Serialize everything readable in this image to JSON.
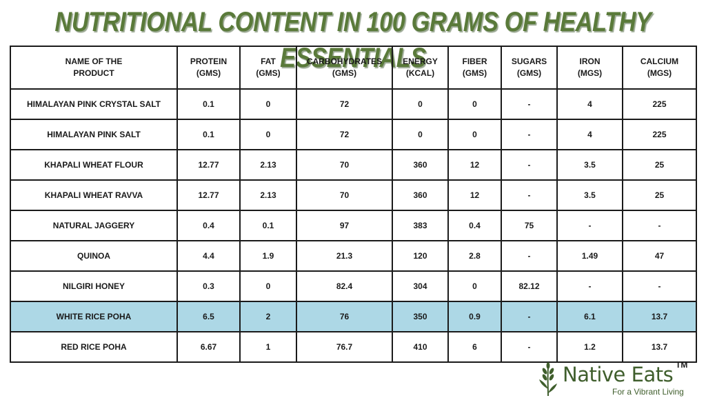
{
  "title": "NUTRITIONAL CONTENT IN 100 GRAMS OF HEALTHY ESSENTIALS",
  "table": {
    "headers": [
      [
        "NAME OF THE",
        "PRODUCT"
      ],
      [
        "PROTEIN",
        "(GMS)"
      ],
      [
        "FAT",
        "(GMS)"
      ],
      [
        "CARBOHYDRATES",
        "(GMS)"
      ],
      [
        "ENERGY",
        "(KCAL)"
      ],
      [
        "FIBER",
        "(GMS)"
      ],
      [
        "SUGARS",
        "(GMS)"
      ],
      [
        "IRON",
        "(MGS)"
      ],
      [
        "CALCIUM",
        "(MGS)"
      ]
    ],
    "rows": [
      [
        "HIMALAYAN PINK CRYSTAL SALT",
        "0.1",
        "0",
        "72",
        "0",
        "0",
        "-",
        "4",
        "225"
      ],
      [
        "HIMALAYAN PINK SALT",
        "0.1",
        "0",
        "72",
        "0",
        "0",
        "-",
        "4",
        "225"
      ],
      [
        "KHAPALI WHEAT FLOUR",
        "12.77",
        "2.13",
        "70",
        "360",
        "12",
        "-",
        "3.5",
        "25"
      ],
      [
        "KHAPALI WHEAT RAVVA",
        "12.77",
        "2.13",
        "70",
        "360",
        "12",
        "-",
        "3.5",
        "25"
      ],
      [
        "NATURAL JAGGERY",
        "0.4",
        "0.1",
        "97",
        "383",
        "0.4",
        "75",
        "-",
        "-"
      ],
      [
        "QUINOA",
        "4.4",
        "1.9",
        "21.3",
        "120",
        "2.8",
        "-",
        "1.49",
        "47"
      ],
      [
        "NILGIRI HONEY",
        "0.3",
        "0",
        "82.4",
        "304",
        "0",
        "82.12",
        "-",
        "-"
      ],
      [
        "WHITE RICE POHA",
        "6.5",
        "2",
        "76",
        "350",
        "0.9",
        "-",
        "6.1",
        "13.7"
      ],
      [
        "RED RICE POHA",
        "6.67",
        "1",
        "76.7",
        "410",
        "6",
        "-",
        "1.2",
        "13.7"
      ]
    ],
    "highlight_row": "WHITE RICE POHA"
  },
  "logo": {
    "name": "Native Eats",
    "tm": "TM",
    "tagline": "For a Vibrant Living",
    "icon": "wheat-stalk-icon"
  },
  "colors": {
    "title": "#5a7a3a",
    "highlight": "#add8e6",
    "logo": "#3f5e2c",
    "border": "#1a1a1a"
  }
}
